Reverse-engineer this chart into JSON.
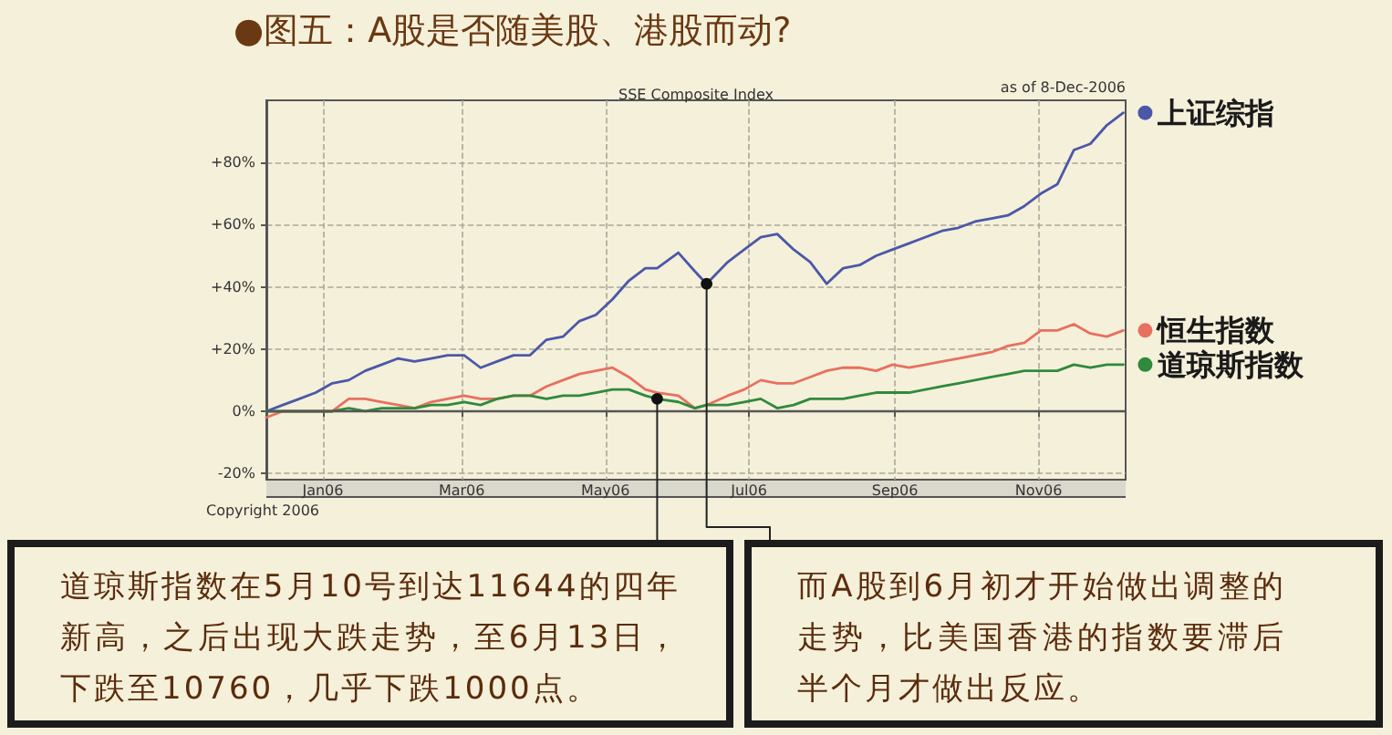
{
  "chart_data": {
    "type": "line",
    "title": "●图五：A股是否随美股、港股而动?",
    "subtitle": "SSE Composite Index",
    "x": [
      "2005-12-08",
      "2005-12-15",
      "2005-12-22",
      "2005-12-29",
      "2006-01-05",
      "2006-01-12",
      "2006-01-19",
      "2006-01-26",
      "2006-02-02",
      "2006-02-09",
      "2006-02-16",
      "2006-02-23",
      "2006-03-02",
      "2006-03-09",
      "2006-03-16",
      "2006-03-23",
      "2006-03-30",
      "2006-04-06",
      "2006-04-13",
      "2006-04-20",
      "2006-04-27",
      "2006-05-04",
      "2006-05-11",
      "2006-05-18",
      "2006-05-23",
      "2006-06-01",
      "2006-06-08",
      "2006-06-13",
      "2006-06-22",
      "2006-06-29",
      "2006-07-06",
      "2006-07-13",
      "2006-07-20",
      "2006-07-27",
      "2006-08-03",
      "2006-08-10",
      "2006-08-17",
      "2006-08-24",
      "2006-08-31",
      "2006-09-07",
      "2006-09-14",
      "2006-09-21",
      "2006-09-28",
      "2006-10-05",
      "2006-10-12",
      "2006-10-19",
      "2006-10-26",
      "2006-11-02",
      "2006-11-09",
      "2006-11-16",
      "2006-11-23",
      "2006-11-30",
      "2006-12-07"
    ],
    "xlim": [
      "2005-12-08",
      "2006-12-08"
    ],
    "xticks": [
      {
        "value": "2006-01-01",
        "label": "Jan06"
      },
      {
        "value": "2006-03-01",
        "label": "Mar06"
      },
      {
        "value": "2006-05-01",
        "label": "May06"
      },
      {
        "value": "2006-07-01",
        "label": "Jul06"
      },
      {
        "value": "2006-09-01",
        "label": "Sep06"
      },
      {
        "value": "2006-11-01",
        "label": "Nov06"
      }
    ],
    "ylim": [
      -22,
      100
    ],
    "yticks": [
      {
        "value": -20,
        "label": "-20%"
      },
      {
        "value": 0,
        "label": "0%"
      },
      {
        "value": 20,
        "label": "+20%"
      },
      {
        "value": 40,
        "label": "+40%"
      },
      {
        "value": 60,
        "label": "+60%"
      },
      {
        "value": 80,
        "label": "+80%"
      }
    ],
    "grid": true,
    "legend": "right",
    "ref_lines": [
      {
        "axis": "y",
        "value": 0,
        "color": "#555555"
      }
    ],
    "series": [
      {
        "name": "上证综指",
        "color": "#4b58a8",
        "values": [
          0,
          2,
          4,
          6,
          9,
          10,
          13,
          15,
          17,
          16,
          17,
          18,
          18,
          14,
          16,
          18,
          18,
          23,
          24,
          29,
          31,
          36,
          42,
          46,
          46,
          51,
          45,
          41,
          48,
          52,
          56,
          57,
          52,
          48,
          41,
          46,
          47,
          50,
          52,
          54,
          56,
          58,
          59,
          61,
          62,
          63,
          66,
          70,
          73,
          84,
          86,
          92,
          96
        ]
      },
      {
        "name": "恒生指数",
        "color": "#e8705f",
        "values": [
          -2,
          0,
          0,
          0,
          0,
          4,
          4,
          3,
          2,
          1,
          3,
          4,
          5,
          4,
          4,
          5,
          5,
          8,
          10,
          12,
          13,
          14,
          11,
          7,
          6,
          5,
          1,
          2,
          5,
          7,
          10,
          9,
          9,
          11,
          13,
          14,
          14,
          13,
          15,
          14,
          15,
          16,
          17,
          18,
          19,
          21,
          22,
          26,
          26,
          28,
          25,
          24,
          26
        ]
      },
      {
        "name": "道琼斯指数",
        "color": "#2f8a3c",
        "values": [
          0,
          0,
          0,
          0,
          0,
          1,
          0,
          1,
          1,
          1,
          2,
          2,
          3,
          2,
          4,
          5,
          5,
          4,
          5,
          5,
          6,
          7,
          7,
          5,
          4,
          3,
          1,
          2,
          2,
          3,
          4,
          1,
          2,
          4,
          4,
          4,
          5,
          6,
          6,
          6,
          7,
          8,
          9,
          10,
          11,
          12,
          13,
          13,
          13,
          15,
          14,
          15,
          15
        ]
      }
    ],
    "annotations": [
      "as of 8-Dec-2006",
      "Copyright 2006",
      {
        "text": "道琼斯指数在5月10号到达11644的四年新高，之后出现大跌走势，至6月13日，下跌至10760，几乎下跌1000点。",
        "x": "2006-05-23",
        "y": 4
      },
      {
        "text": "而A股到6月初才开始做出调整的走势，比美国香港的指数要滞后半个月才做出反应。",
        "x": "2006-06-13",
        "y": 41
      }
    ]
  }
}
